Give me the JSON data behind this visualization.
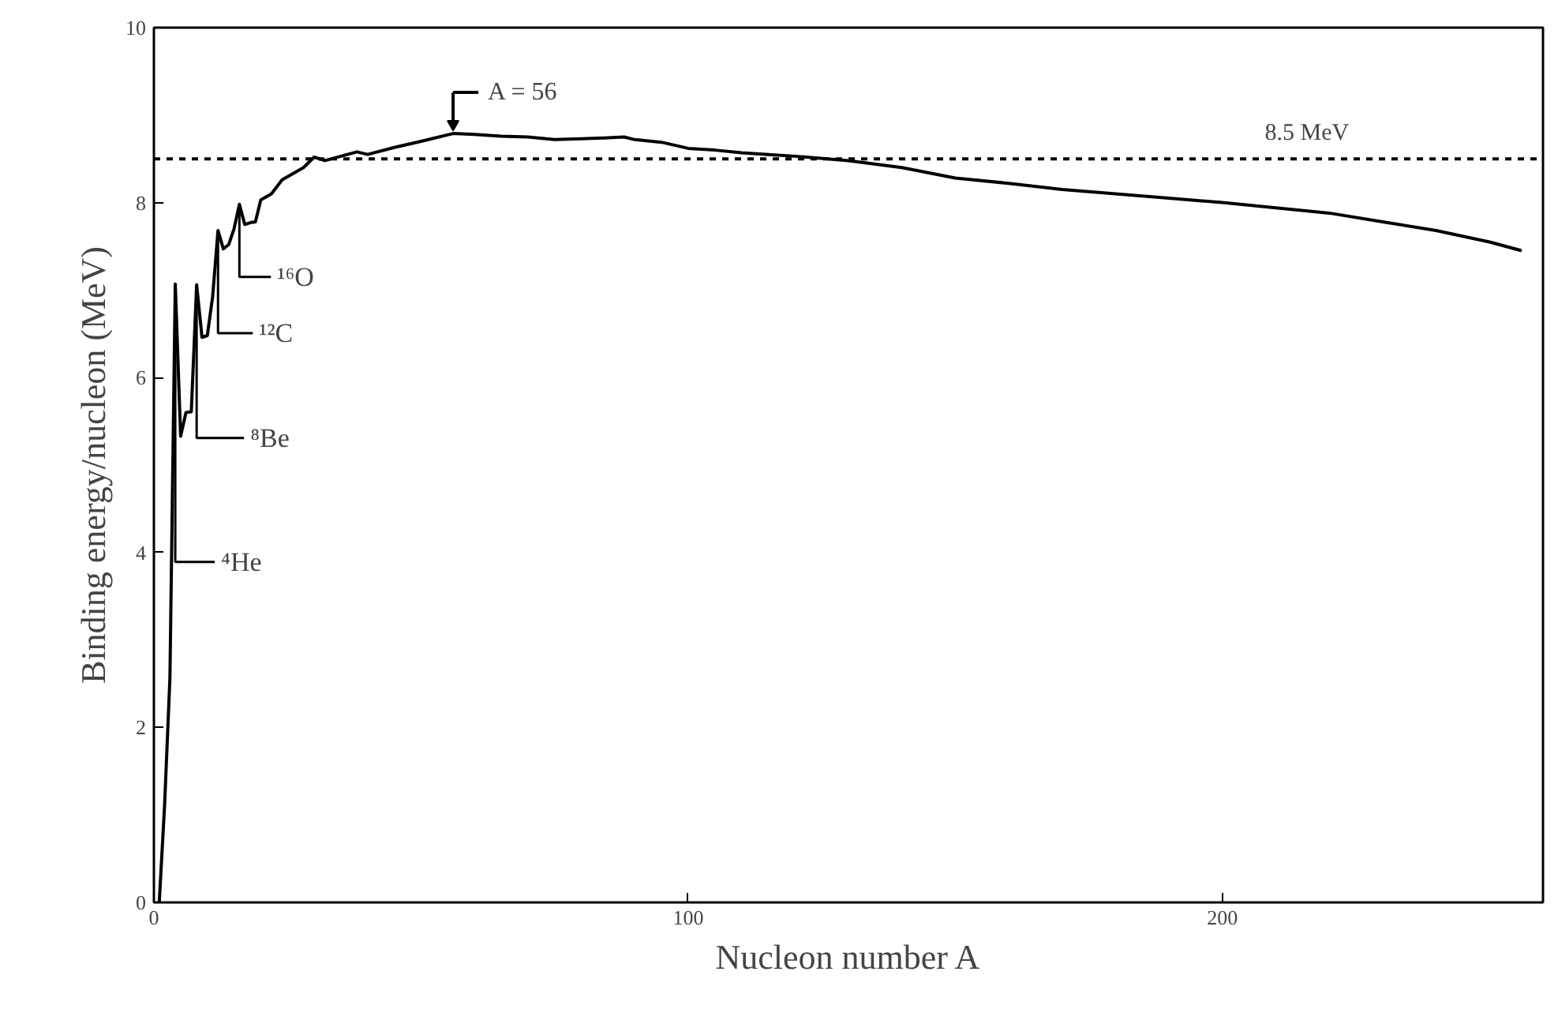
{
  "chart_data": {
    "type": "line",
    "xlabel": "Nucleon number A",
    "ylabel": "Binding energy/nucleon (MeV)",
    "x": [
      1,
      2,
      3,
      4,
      5,
      6,
      7,
      8,
      9,
      10,
      11,
      12,
      13,
      14,
      15,
      16,
      17,
      18,
      19,
      20,
      22,
      24,
      26,
      28,
      30,
      32,
      35,
      38,
      40,
      45,
      50,
      56,
      60,
      65,
      70,
      75,
      80,
      85,
      88,
      90,
      95,
      100,
      105,
      110,
      115,
      120,
      130,
      140,
      150,
      160,
      170,
      180,
      190,
      200,
      210,
      220,
      230,
      240,
      250,
      256
    ],
    "series": [
      {
        "color": "#000000",
        "values": [
          0,
          1.11,
          2.57,
          7.07,
          5.33,
          5.6,
          5.61,
          7.06,
          6.46,
          6.48,
          6.93,
          7.68,
          7.47,
          7.52,
          7.7,
          7.98,
          7.75,
          7.77,
          7.78,
          8.03,
          8.1,
          8.26,
          8.33,
          8.4,
          8.52,
          8.48,
          8.53,
          8.58,
          8.55,
          8.63,
          8.7,
          8.79,
          8.78,
          8.76,
          8.75,
          8.72,
          8.73,
          8.74,
          8.75,
          8.72,
          8.69,
          8.62,
          8.6,
          8.57,
          8.55,
          8.53,
          8.48,
          8.4,
          8.28,
          8.22,
          8.15,
          8.1,
          8.05,
          8.0,
          7.94,
          7.88,
          7.78,
          7.68,
          7.55,
          7.45
        ]
      }
    ],
    "xlim": [
      0,
      260
    ],
    "ylim": [
      0,
      10
    ],
    "xticks": [
      0,
      100,
      200
    ],
    "yticks": [
      0,
      2,
      4,
      6,
      8,
      10
    ],
    "grid": false,
    "marker": "none",
    "line_style": "solid",
    "ref_lines": [
      {
        "axis": "y",
        "value": 8.5,
        "label": "8.5 MeV",
        "line_style": "dashed",
        "color": "#000000"
      }
    ],
    "annotations": [
      {
        "text": "A = 56",
        "x": 56,
        "y": 8.79
      },
      {
        "text": "⁴He",
        "x": 4,
        "y": 7.07
      },
      {
        "text": "⁸Be",
        "x": 8,
        "y": 7.06
      },
      {
        "text": "¹²C",
        "x": 12,
        "y": 7.68
      },
      {
        "text": "¹⁶O",
        "x": 16,
        "y": 7.98
      }
    ]
  }
}
